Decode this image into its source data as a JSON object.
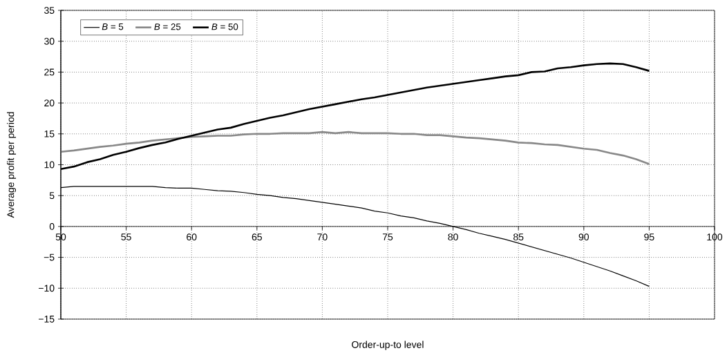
{
  "chart_data": {
    "type": "line",
    "xlabel": "Order-up-to level",
    "ylabel": "Average profit per period",
    "x": [
      50,
      51,
      52,
      53,
      54,
      55,
      56,
      57,
      58,
      59,
      60,
      61,
      62,
      63,
      64,
      65,
      66,
      67,
      68,
      69,
      70,
      71,
      72,
      73,
      74,
      75,
      76,
      77,
      78,
      79,
      80,
      81,
      82,
      83,
      84,
      85,
      86,
      87,
      88,
      89,
      90,
      91,
      92,
      93,
      94,
      95
    ],
    "series": [
      {
        "name": "*B* = 5",
        "color": "#000000",
        "values": [
          6.3,
          6.5,
          6.5,
          6.5,
          6.5,
          6.5,
          6.5,
          6.5,
          6.3,
          6.2,
          6.2,
          6.0,
          5.8,
          5.7,
          5.5,
          5.2,
          5.0,
          4.7,
          4.5,
          4.2,
          3.9,
          3.6,
          3.3,
          3.0,
          2.5,
          2.2,
          1.7,
          1.4,
          0.9,
          0.5,
          0,
          -0.5,
          -1.1,
          -1.6,
          -2.1,
          -2.7,
          -3.3,
          -3.9,
          -4.5,
          -5.1,
          -5.8,
          -6.5,
          -7.2,
          -8.0,
          -8.8,
          -9.7
        ]
      },
      {
        "name": "*B* = 25",
        "color": "#888888",
        "values": [
          12.1,
          12.3,
          12.6,
          12.9,
          13.1,
          13.4,
          13.6,
          13.9,
          14.1,
          14.3,
          14.5,
          14.6,
          14.7,
          14.7,
          14.9,
          15.0,
          15.0,
          15.1,
          15.1,
          15.1,
          15.3,
          15.1,
          15.3,
          15.1,
          15.1,
          15.1,
          15.0,
          15.0,
          14.8,
          14.8,
          14.6,
          14.4,
          14.3,
          14.1,
          13.9,
          13.6,
          13.5,
          13.3,
          13.2,
          12.9,
          12.6,
          12.4,
          11.9,
          11.5,
          10.9,
          10.1
        ]
      },
      {
        "name": "*B* = 50",
        "color": "#000000",
        "values": [
          9.3,
          9.7,
          10.4,
          10.9,
          11.6,
          12.1,
          12.7,
          13.2,
          13.6,
          14.2,
          14.7,
          15.2,
          15.7,
          16.0,
          16.6,
          17.1,
          17.6,
          18.0,
          18.5,
          19.0,
          19.4,
          19.8,
          20.2,
          20.6,
          20.9,
          21.3,
          21.7,
          22.1,
          22.5,
          22.8,
          23.1,
          23.4,
          23.7,
          24.0,
          24.3,
          24.5,
          25.0,
          25.1,
          25.6,
          25.8,
          26.1,
          26.3,
          26.4,
          26.3,
          25.8,
          25.2
        ]
      }
    ],
    "xlim": [
      50,
      100
    ],
    "xticks": [
      50,
      55,
      60,
      65,
      70,
      75,
      80,
      85,
      90,
      95,
      100
    ],
    "ylim": [
      -15,
      35
    ],
    "yticks": [
      {
        "value": -15,
        "label": "−15"
      },
      {
        "value": -10,
        "label": "−10"
      },
      {
        "value": -5,
        "label": "−5"
      },
      0,
      5,
      10,
      15,
      20,
      25,
      30,
      35
    ],
    "grid": true,
    "legend": "top left",
    "marker": "none",
    "line_style": "solid"
  }
}
